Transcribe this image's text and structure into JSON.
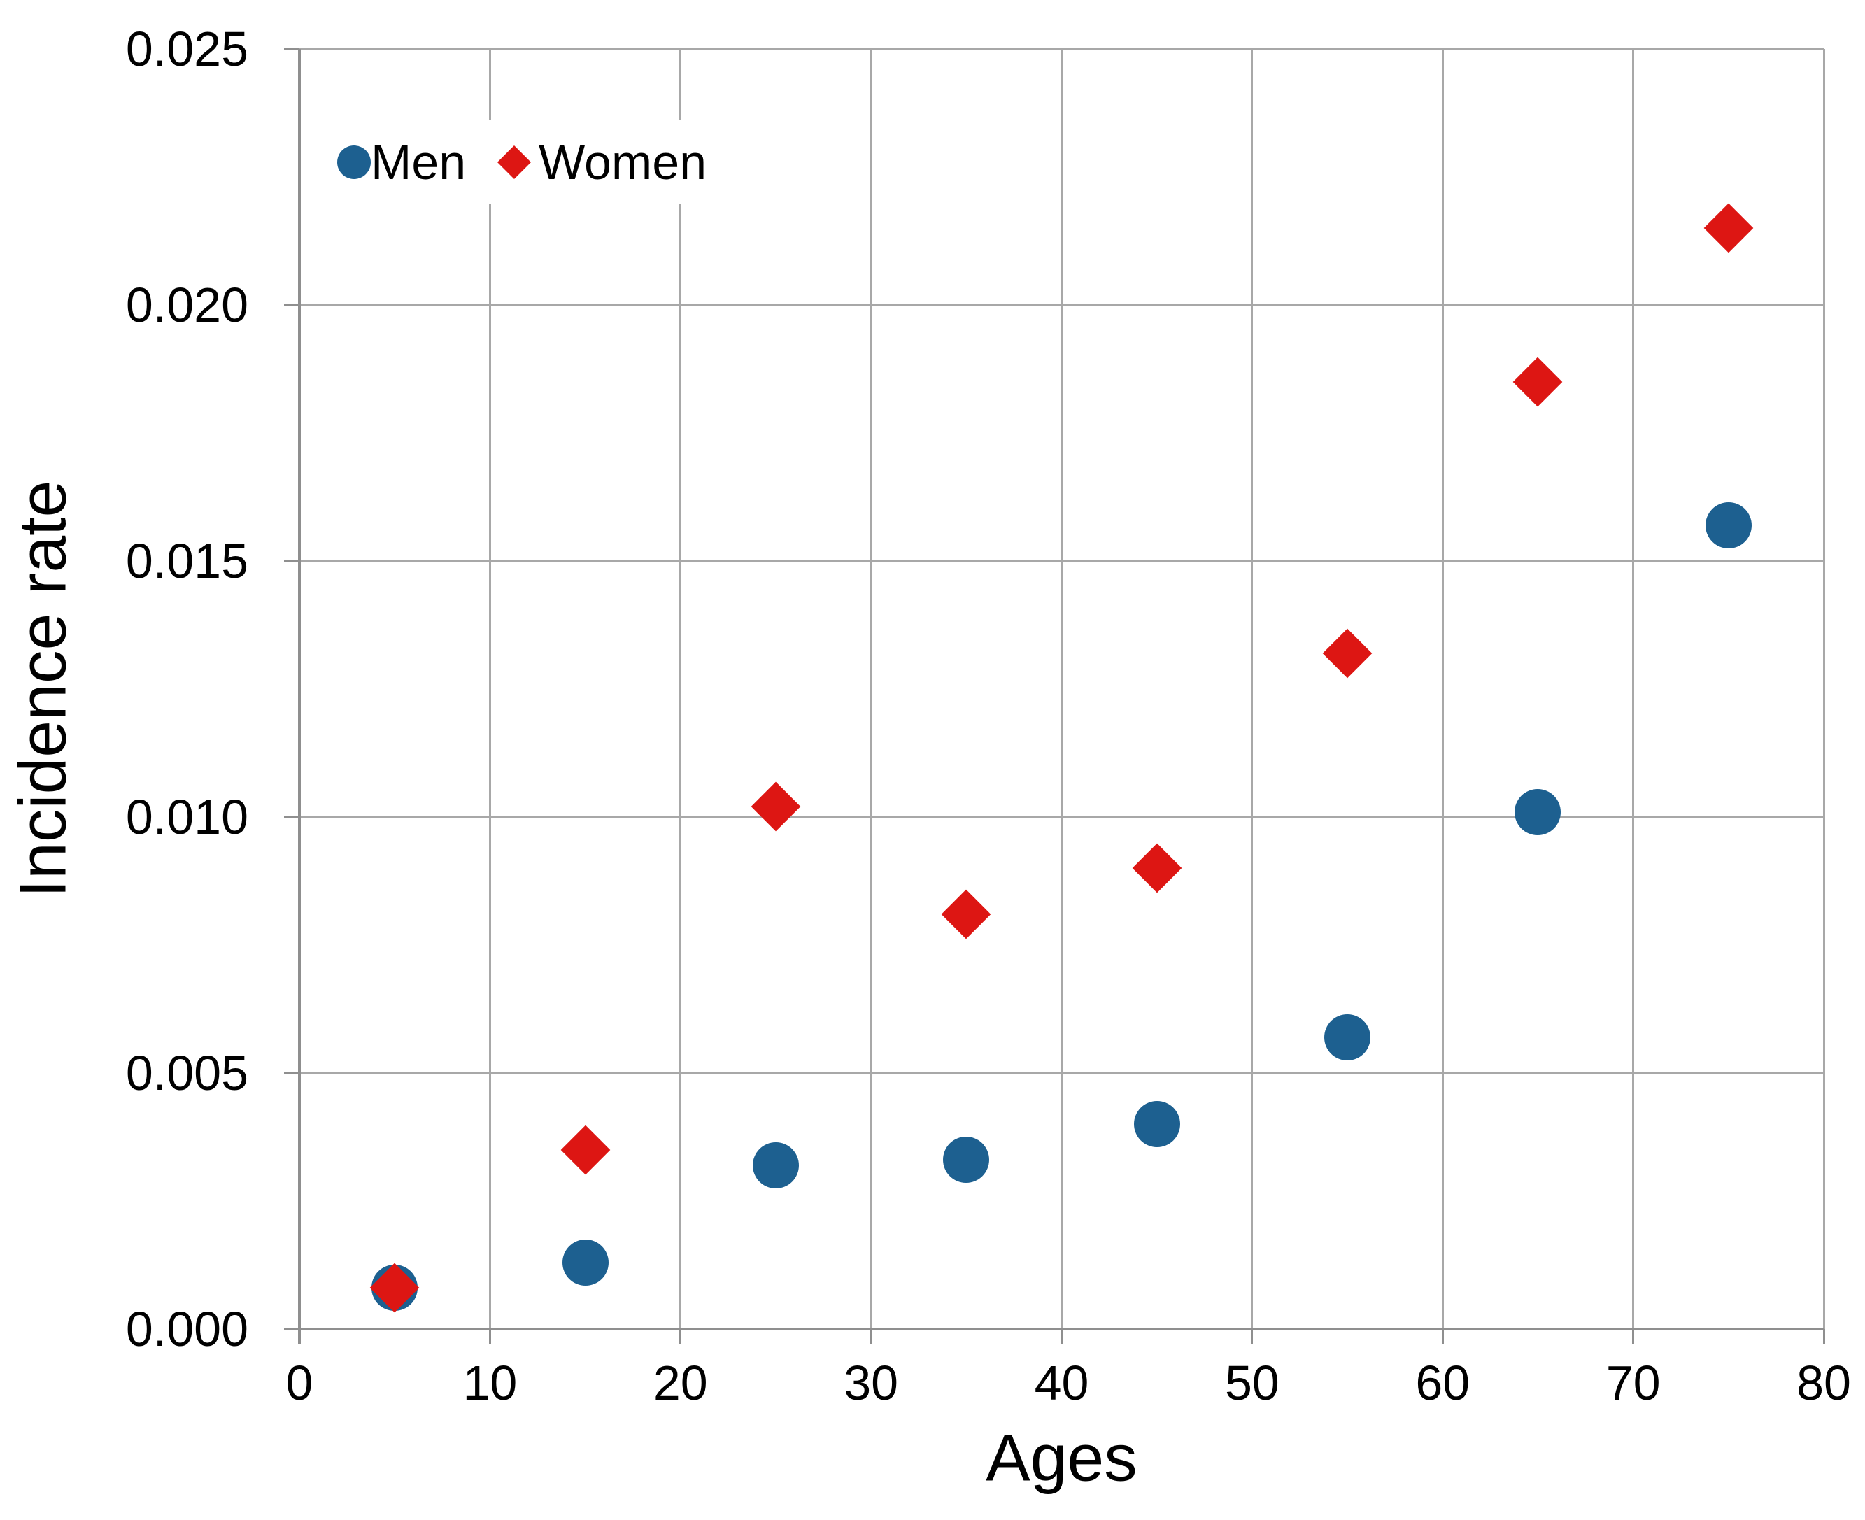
{
  "chart_data": {
    "type": "scatter",
    "title": "",
    "xlabel": "Ages",
    "ylabel": "Incidence rate",
    "x": [
      5,
      15,
      25,
      35,
      45,
      55,
      65,
      75
    ],
    "series": [
      {
        "name": "Men",
        "marker": "circle",
        "color": "#1d6090",
        "values": [
          0.0008,
          0.0013,
          0.0032,
          0.0033,
          0.004,
          0.0057,
          0.0101,
          0.0157
        ]
      },
      {
        "name": "Women",
        "marker": "diamond",
        "color": "#dd1613",
        "values": [
          0.0008,
          0.0035,
          0.0102,
          0.0081,
          0.009,
          0.0132,
          0.0185,
          0.0215
        ]
      }
    ],
    "xlim": [
      0,
      80
    ],
    "ylim": [
      0,
      0.025
    ],
    "x_ticks": [
      "0",
      "10",
      "20",
      "30",
      "40",
      "50",
      "60",
      "70",
      "80"
    ],
    "y_ticks": [
      "0.000",
      "0.005",
      "0.010",
      "0.015",
      "0.020",
      "0.025"
    ],
    "grid": "both",
    "grid_color": "#a8a8a8",
    "axis_color": "#8f8f8f",
    "legend_position": "top-left-inside"
  }
}
